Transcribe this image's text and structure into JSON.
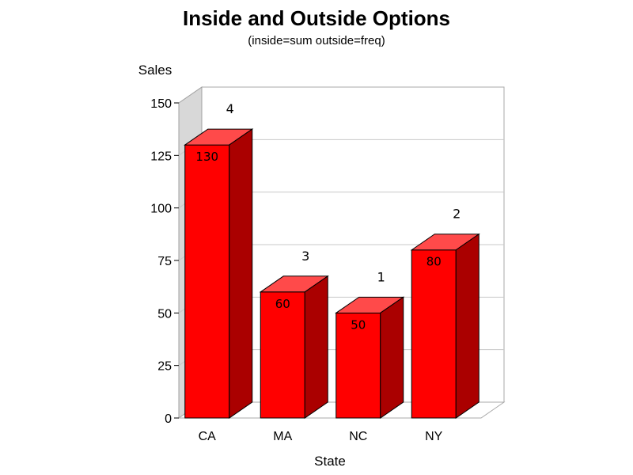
{
  "chart_data": {
    "type": "bar",
    "title": "Inside and Outside Options",
    "subtitle": "(inside=sum outside=freq)",
    "xlabel": "State",
    "ylabel": "Sales",
    "categories": [
      "CA",
      "MA",
      "NC",
      "NY"
    ],
    "values": [
      130,
      60,
      50,
      80
    ],
    "inside_labels": [
      "130",
      "60",
      "50",
      "80"
    ],
    "outside_labels": [
      "4",
      "3",
      "1",
      "2"
    ],
    "ylim": [
      0,
      150
    ],
    "yticks": [
      0,
      25,
      50,
      75,
      100,
      125,
      150
    ],
    "grid": true,
    "three_d": true,
    "colors": {
      "bar_front": "#ff0000",
      "bar_top": "#ff4a4a",
      "bar_side": "#aa0000",
      "wall_side": "#d8d8d8",
      "grid": "#c8c8c8"
    }
  }
}
